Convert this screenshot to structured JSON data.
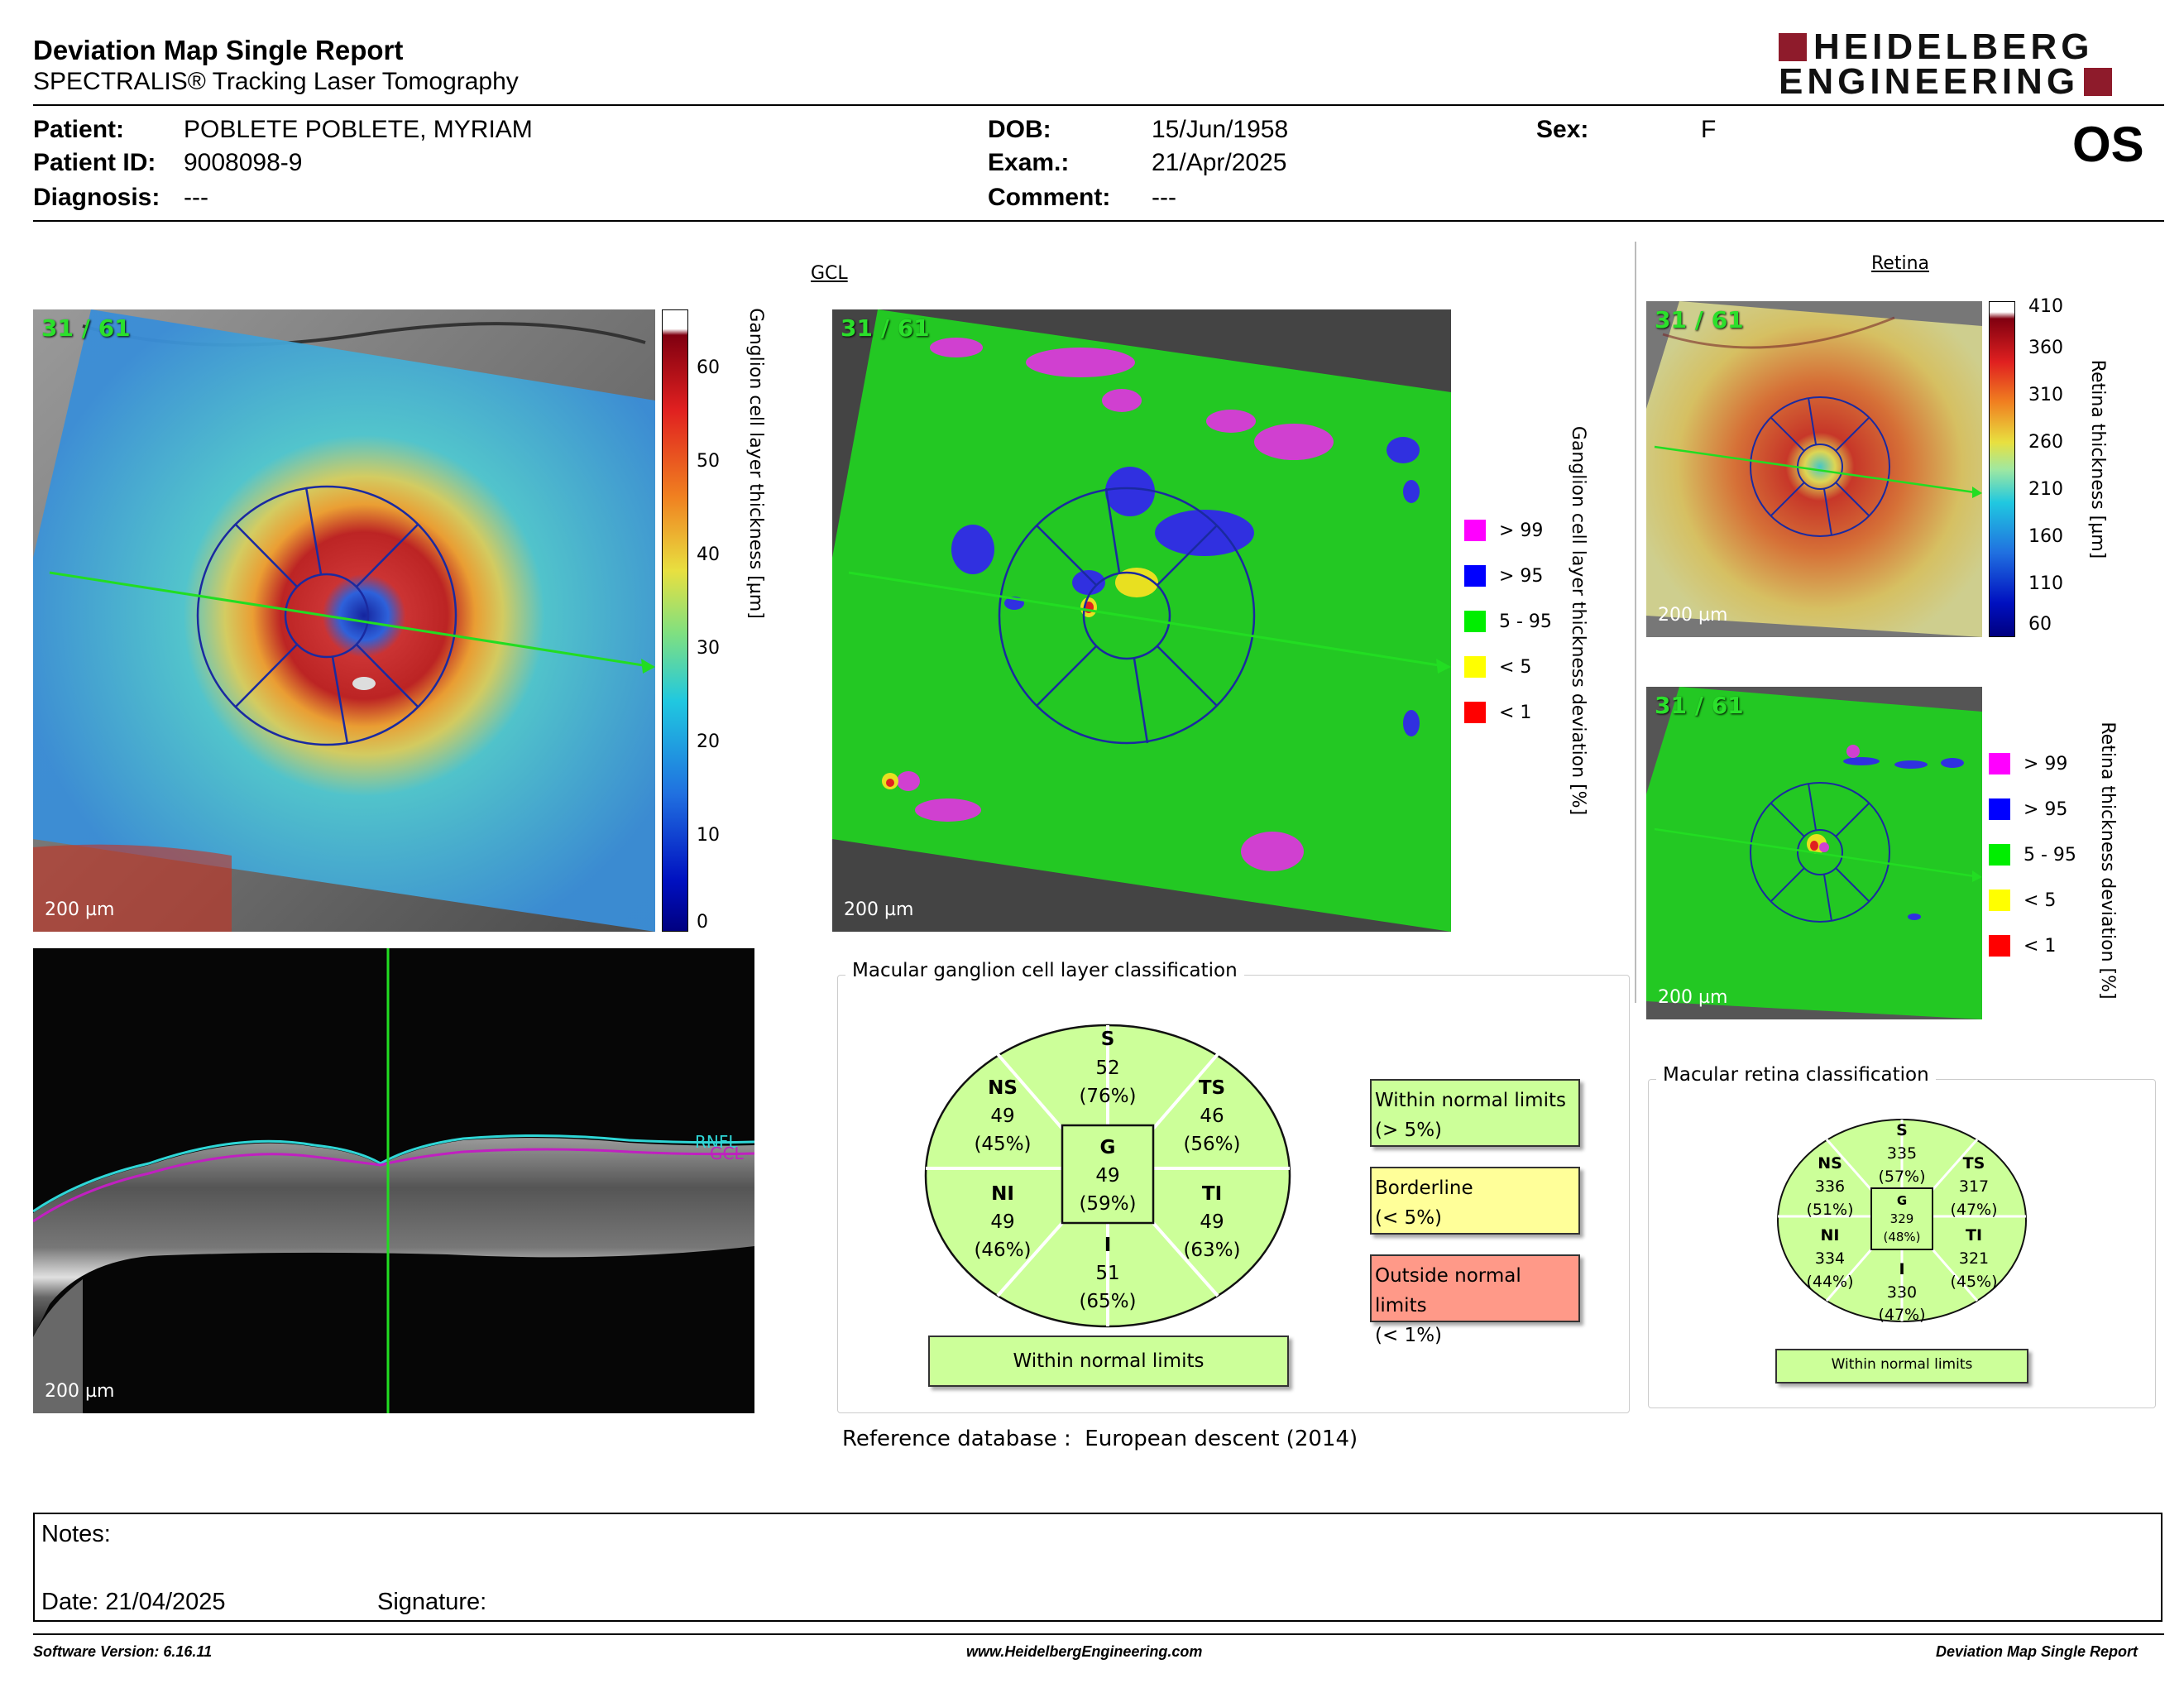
{
  "header": {
    "title": "Deviation Map Single Report",
    "subtitle": "SPECTRALIS® Tracking Laser Tomography",
    "logo_line1": "HEIDELBERG",
    "logo_line2": "ENGINEERING"
  },
  "patient": {
    "patient_label": "Patient:",
    "patient_value": "POBLETE POBLETE, MYRIAM",
    "id_label": "Patient ID:",
    "id_value": "9008098-9",
    "diagnosis_label": "Diagnosis:",
    "diagnosis_value": "---",
    "dob_label": "DOB:",
    "dob_value": "15/Jun/1958",
    "exam_label": "Exam.:",
    "exam_value": "21/Apr/2025",
    "comment_label": "Comment:",
    "comment_value": "---",
    "sex_label": "Sex:",
    "sex_value": "F",
    "eye": "OS"
  },
  "gcl": {
    "section_title": "GCL",
    "scan_label": "31 / 61",
    "scale_label": "200 µm",
    "thickness_axis_label": "Ganglion cell layer thickness [µm]",
    "thickness_ticks": [
      "60",
      "50",
      "40",
      "30",
      "20",
      "10",
      "0"
    ],
    "deviation_axis_label": "Ganglion cell layer thickness deviation [%]",
    "layer_labels": {
      "rnfl": "RNFL",
      "gcl": "GCL"
    }
  },
  "retina": {
    "section_title": "Retina",
    "scan_label": "31 / 61",
    "scale_label": "200 µm",
    "thickness_axis_label": "Retina thickness [µm]",
    "thickness_ticks": [
      "410",
      "360",
      "310",
      "260",
      "210",
      "160",
      "110",
      "60"
    ],
    "deviation_axis_label": "Retina thickness deviation [%]"
  },
  "deviation_legend": [
    {
      "label": "> 99",
      "color": "#ff00ff"
    },
    {
      "label": "> 95",
      "color": "#0000ff"
    },
    {
      "label": "5 - 95",
      "color": "#00ee00"
    },
    {
      "label": "< 5",
      "color": "#ffff00"
    },
    {
      "label": "< 1",
      "color": "#ff0000"
    }
  ],
  "gcl_classification": {
    "title": "Macular ganglion cell layer classification",
    "sectors": {
      "S": {
        "name": "S",
        "value": "52",
        "pct": "(76%)"
      },
      "NS": {
        "name": "NS",
        "value": "49",
        "pct": "(45%)"
      },
      "TS": {
        "name": "TS",
        "value": "46",
        "pct": "(56%)"
      },
      "G": {
        "name": "G",
        "value": "49",
        "pct": "(59%)"
      },
      "NI": {
        "name": "NI",
        "value": "49",
        "pct": "(46%)"
      },
      "TI": {
        "name": "TI",
        "value": "49",
        "pct": "(63%)"
      },
      "I": {
        "name": "I",
        "value": "51",
        "pct": "(65%)"
      }
    },
    "result": "Within normal limits",
    "reference_label": "Reference database :",
    "reference_value": "European descent (2014)"
  },
  "classification_legend": [
    {
      "line1": "Within normal limits",
      "line2": "(> 5%)",
      "color": "#ccff99"
    },
    {
      "line1": "Borderline",
      "line2": "(< 5%)",
      "color": "#ffff99"
    },
    {
      "line1": "Outside normal limits",
      "line2": "(< 1%)",
      "color": "#ff9988"
    }
  ],
  "retina_classification": {
    "title": "Macular retina classification",
    "sectors": {
      "S": {
        "name": "S",
        "value": "335",
        "pct": "(57%)"
      },
      "NS": {
        "name": "NS",
        "value": "336",
        "pct": "(51%)"
      },
      "TS": {
        "name": "TS",
        "value": "317",
        "pct": "(47%)"
      },
      "G": {
        "name": "G",
        "value": "329",
        "pct": "(48%)"
      },
      "NI": {
        "name": "NI",
        "value": "334",
        "pct": "(44%)"
      },
      "TI": {
        "name": "TI",
        "value": "321",
        "pct": "(45%)"
      },
      "I": {
        "name": "I",
        "value": "330",
        "pct": "(47%)"
      }
    },
    "result": "Within normal limits"
  },
  "notes": {
    "notes_label": "Notes:",
    "date_label": "Date: 21/04/2025",
    "signature_label": "Signature:"
  },
  "footer": {
    "software": "Software Version: 6.16.11",
    "website": "www.HeidelbergEngineering.com",
    "report": "Deviation Map Single Report"
  },
  "colors": {
    "accent": "#8e1b2b",
    "normal": "#ccff99",
    "borderline": "#ffff99",
    "outside": "#ff9988"
  }
}
